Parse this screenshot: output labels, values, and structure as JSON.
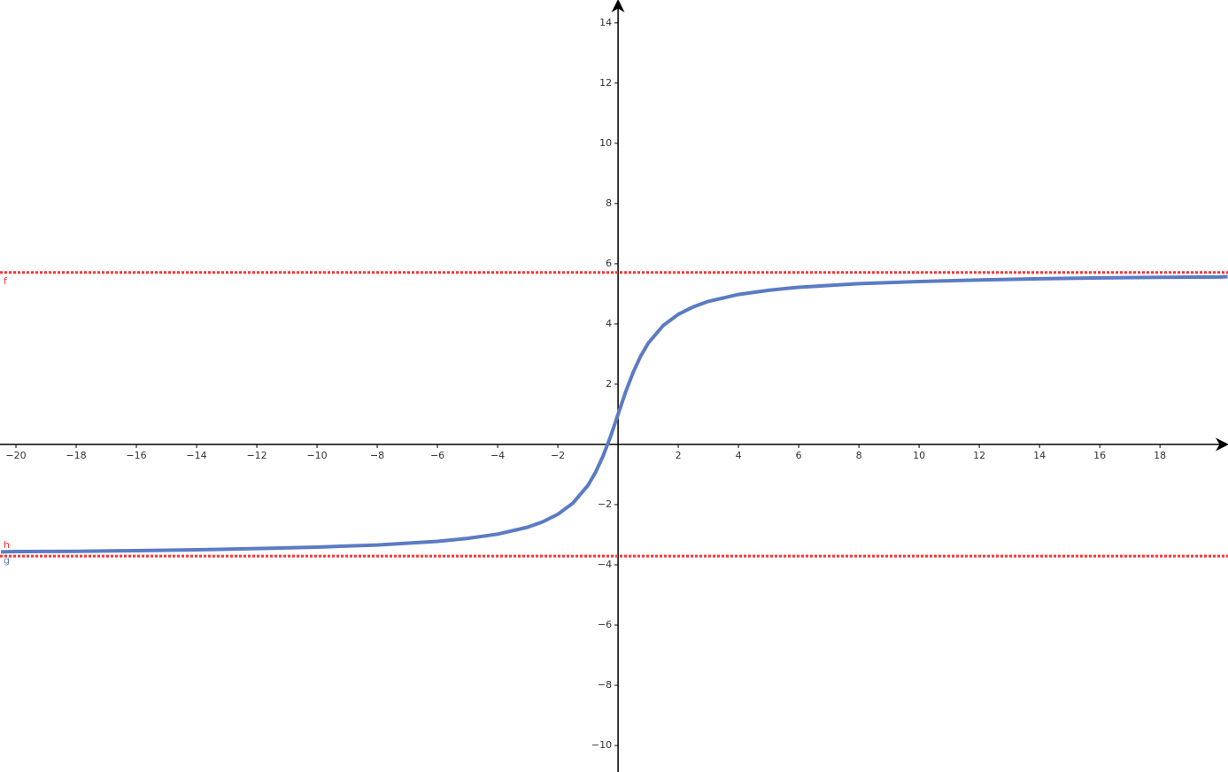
{
  "chart_data": {
    "type": "line",
    "xlim": [
      -20.53,
      20.26
    ],
    "ylim": [
      -10.88,
      14.76
    ],
    "xticks": [
      {
        "value": -20,
        "label": "−20"
      },
      {
        "value": -18,
        "label": "−18"
      },
      {
        "value": -16,
        "label": "−16"
      },
      {
        "value": -14,
        "label": "−14"
      },
      {
        "value": -12,
        "label": "−12"
      },
      {
        "value": -10,
        "label": "−10"
      },
      {
        "value": -8,
        "label": "−8"
      },
      {
        "value": -6,
        "label": "−6"
      },
      {
        "value": -4,
        "label": "−4"
      },
      {
        "value": -2,
        "label": "−2"
      },
      2,
      4,
      6,
      8,
      10,
      12,
      14,
      16,
      18
    ],
    "yticks": [
      {
        "value": -10,
        "label": "−10"
      },
      {
        "value": -8,
        "label": "−8"
      },
      {
        "value": -6,
        "label": "−6"
      },
      {
        "value": -4,
        "label": "−4"
      },
      {
        "value": -2,
        "label": "−2"
      },
      2,
      4,
      6,
      8,
      10,
      12,
      14
    ],
    "series": [
      {
        "name": "g",
        "color": "#5b7bc4",
        "x": [
          -20.5,
          -20,
          -18,
          -16,
          -14,
          -12,
          -10,
          -8,
          -6,
          -5,
          -4,
          -3,
          -2.5,
          -2,
          -1.5,
          -1,
          -0.75,
          -0.5,
          -0.25,
          0,
          0.25,
          0.5,
          0.75,
          1,
          1.5,
          2,
          2.5,
          3,
          4,
          5,
          6,
          8,
          10,
          12,
          14,
          16,
          18,
          20,
          20.25
        ],
        "values": [
          -3.57,
          -3.56,
          -3.55,
          -3.53,
          -3.5,
          -3.46,
          -3.41,
          -3.34,
          -3.22,
          -3.12,
          -2.98,
          -2.75,
          -2.57,
          -2.32,
          -1.95,
          -1.36,
          -0.93,
          -0.39,
          0.26,
          1,
          1.74,
          2.39,
          2.93,
          3.36,
          3.95,
          4.32,
          4.57,
          4.75,
          4.98,
          5.12,
          5.22,
          5.34,
          5.41,
          5.46,
          5.5,
          5.53,
          5.55,
          5.56,
          5.57
        ]
      }
    ],
    "horizontal_lines": [
      {
        "name": "f",
        "value": 5.71,
        "color": "#ff3333"
      },
      {
        "name": "h",
        "value": -3.71,
        "color": "#ff3333"
      }
    ]
  }
}
